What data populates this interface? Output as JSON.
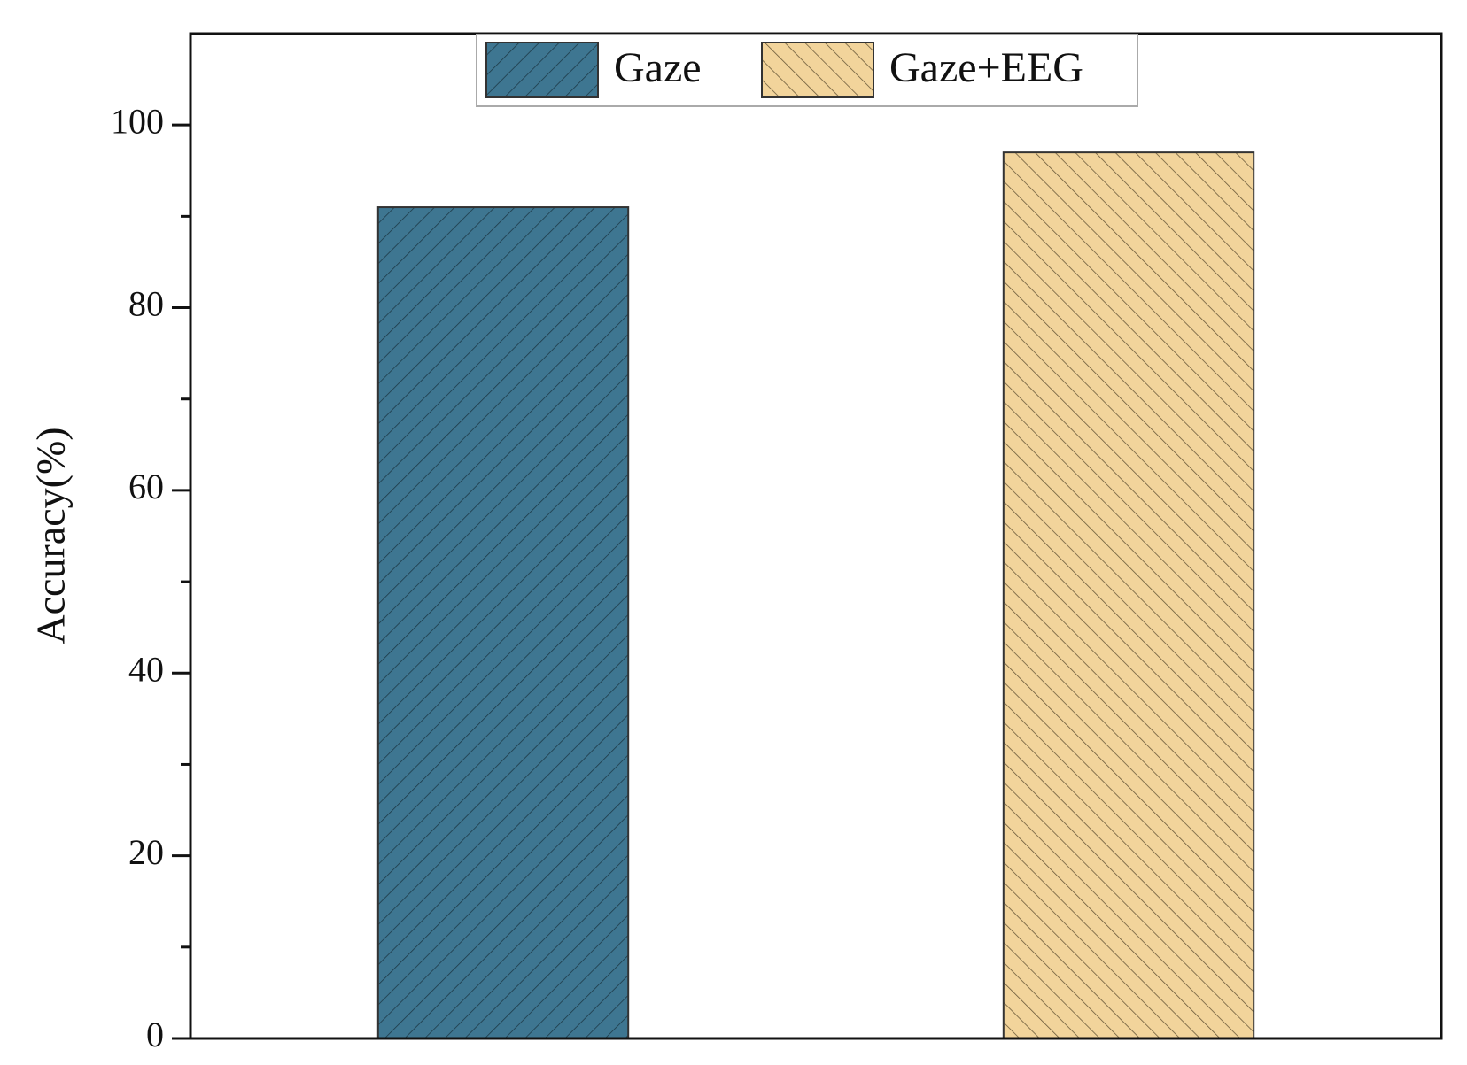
{
  "chart_data": {
    "type": "bar",
    "y_label": "Accuracy(%)",
    "categories": [
      null
    ],
    "series": [
      {
        "name": "Gaze",
        "color": "#3e7691",
        "hatch": "/",
        "values": [
          91
        ]
      },
      {
        "name": "Gaze+EEG",
        "color": "#f2d49b",
        "hatch": "\\",
        "values": [
          97
        ]
      }
    ],
    "ylim": [
      0,
      110
    ],
    "yticks": [
      0,
      20,
      40,
      60,
      80,
      100
    ],
    "yminorticks": [
      10,
      30,
      50,
      70,
      90
    ],
    "legend": "top"
  }
}
